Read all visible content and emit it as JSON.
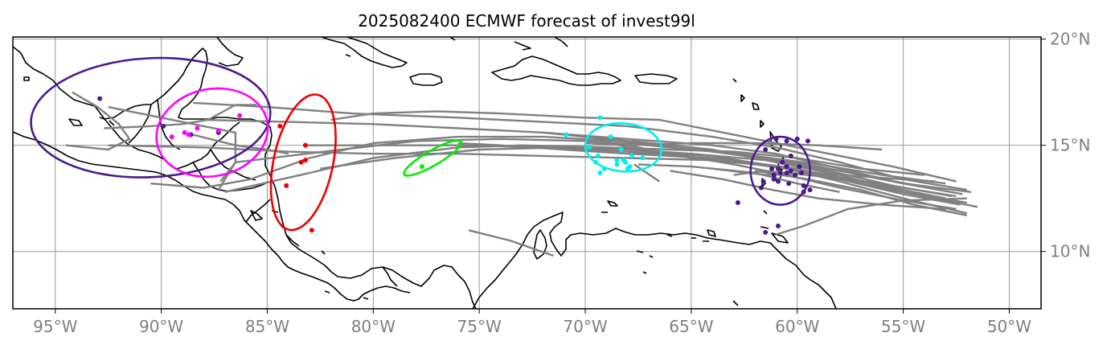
{
  "title": "2025082400 ECMWF forecast of invest99l",
  "chart_data": {
    "type": "map",
    "projection": "PlateCarree",
    "lon_range": [
      -97,
      -48.5
    ],
    "lat_range": [
      7.3,
      20.1
    ],
    "lon_ticks": [
      {
        "value": -95,
        "label": "95°W"
      },
      {
        "value": -90,
        "label": "90°W"
      },
      {
        "value": -85,
        "label": "85°W"
      },
      {
        "value": -80,
        "label": "80°W"
      },
      {
        "value": -75,
        "label": "75°W"
      },
      {
        "value": -70,
        "label": "70°W"
      },
      {
        "value": -65,
        "label": "65°W"
      },
      {
        "value": -60,
        "label": "60°W"
      },
      {
        "value": -55,
        "label": "55°W"
      },
      {
        "value": -50,
        "label": "50°W"
      }
    ],
    "lat_ticks": [
      {
        "value": 10,
        "label": "10°N"
      },
      {
        "value": 15,
        "label": "15°N"
      },
      {
        "value": 20,
        "label": "20°N"
      }
    ],
    "grid": true,
    "track_color": "#808080",
    "ensemble_tracks": [
      [
        [
          -52.5,
          12.6
        ],
        [
          -55,
          13.0
        ],
        [
          -58,
          13.5
        ],
        [
          -61,
          14.0
        ],
        [
          -64,
          14.3
        ],
        [
          -68,
          14.4
        ],
        [
          -72,
          14.5
        ],
        [
          -76,
          14.6
        ],
        [
          -80,
          14.6
        ],
        [
          -84,
          14.7
        ],
        [
          -88,
          14.9
        ],
        [
          -92.5,
          15.0
        ]
      ],
      [
        [
          -52,
          12.3
        ],
        [
          -55,
          12.8
        ],
        [
          -58,
          13.6
        ],
        [
          -61,
          14.2
        ],
        [
          -64,
          14.8
        ],
        [
          -68,
          15.2
        ],
        [
          -72,
          15.6
        ],
        [
          -76,
          15.8
        ],
        [
          -80,
          16.0
        ],
        [
          -84,
          16.1
        ],
        [
          -88,
          16.2
        ]
      ],
      [
        [
          -52.3,
          12.2
        ],
        [
          -55,
          12.7
        ],
        [
          -58,
          13.4
        ],
        [
          -61,
          14.0
        ],
        [
          -64,
          14.5
        ],
        [
          -68,
          14.7
        ],
        [
          -72,
          14.9
        ],
        [
          -76,
          15.0
        ],
        [
          -80,
          15.0
        ],
        [
          -83.3,
          15.0
        ]
      ],
      [
        [
          -52,
          11.8
        ],
        [
          -55,
          12.5
        ],
        [
          -58,
          13.3
        ],
        [
          -61,
          14.0
        ],
        [
          -64,
          14.4
        ],
        [
          -68,
          14.6
        ],
        [
          -71,
          14.8
        ],
        [
          -74,
          15.0
        ],
        [
          -76,
          15.1
        ]
      ],
      [
        [
          -51.5,
          12.1
        ],
        [
          -54,
          12.6
        ],
        [
          -57,
          13.2
        ],
        [
          -60,
          13.9
        ],
        [
          -63,
          14.3
        ],
        [
          -66,
          14.5
        ],
        [
          -68,
          14.7
        ]
      ],
      [
        [
          -53,
          12.5
        ],
        [
          -56,
          13.1
        ],
        [
          -59,
          13.7
        ],
        [
          -62,
          14.1
        ],
        [
          -65,
          14.4
        ],
        [
          -68,
          14.9
        ],
        [
          -69.5,
          15.3
        ]
      ],
      [
        [
          -52.5,
          12.0
        ],
        [
          -55,
          12.4
        ],
        [
          -58,
          13.0
        ],
        [
          -60.5,
          13.6
        ],
        [
          -63,
          14.1
        ],
        [
          -66,
          14.6
        ],
        [
          -68,
          15.0
        ]
      ],
      [
        [
          -52,
          11.7
        ],
        [
          -54.5,
          12.2
        ],
        [
          -57,
          12.9
        ],
        [
          -59.5,
          13.4
        ],
        [
          -62,
          13.8
        ]
      ],
      [
        [
          -51.8,
          12.8
        ],
        [
          -55,
          13.2
        ],
        [
          -58,
          13.9
        ],
        [
          -61,
          14.6
        ],
        [
          -64,
          15.0
        ],
        [
          -68,
          15.3
        ],
        [
          -72,
          15.6
        ]
      ],
      [
        [
          -53,
          13.2
        ],
        [
          -56,
          13.6
        ],
        [
          -59,
          14.1
        ],
        [
          -62,
          14.5
        ],
        [
          -65,
          14.9
        ],
        [
          -67.8,
          15.2
        ]
      ],
      [
        [
          -52.8,
          12.4
        ],
        [
          -55.5,
          12.9
        ],
        [
          -58.5,
          13.5
        ],
        [
          -61.5,
          13.8
        ],
        [
          -63,
          13.6
        ]
      ],
      [
        [
          -54,
          13.6
        ],
        [
          -57,
          13.9
        ],
        [
          -60,
          14.4
        ],
        [
          -63,
          14.7
        ],
        [
          -66,
          14.8
        ],
        [
          -69,
          14.9
        ],
        [
          -73,
          15.0
        ],
        [
          -76,
          14.9
        ],
        [
          -80,
          14.4
        ],
        [
          -83,
          13.7
        ],
        [
          -87,
          12.8
        ]
      ],
      [
        [
          -52,
          12.9
        ],
        [
          -55,
          13.4
        ],
        [
          -58,
          14.2
        ],
        [
          -61,
          14.9
        ],
        [
          -64,
          15.4
        ],
        [
          -68,
          15.9
        ],
        [
          -72,
          16.1
        ],
        [
          -76,
          16.3
        ],
        [
          -81,
          16.5
        ],
        [
          -85,
          16.8
        ],
        [
          -88.5,
          17.0
        ]
      ],
      [
        [
          -52.5,
          13.3
        ],
        [
          -55.5,
          14.0
        ],
        [
          -58.5,
          14.6
        ],
        [
          -61,
          15.1
        ],
        [
          -63.5,
          15.6
        ],
        [
          -66.5,
          16.2
        ],
        [
          -70,
          16.3
        ],
        [
          -74,
          16.5
        ],
        [
          -77,
          16.6
        ],
        [
          -80,
          16.5
        ],
        [
          -82,
          16.2
        ]
      ],
      [
        [
          -56,
          14.8
        ],
        [
          -59,
          15.0
        ],
        [
          -62,
          15.1
        ],
        [
          -65,
          15.1
        ],
        [
          -68,
          15.0
        ],
        [
          -70,
          15.1
        ]
      ],
      [
        [
          -58,
          12.8
        ],
        [
          -60,
          13.2
        ],
        [
          -62,
          13.7
        ],
        [
          -65,
          14.0
        ],
        [
          -67.5,
          14.1
        ]
      ],
      [
        [
          -53,
          12.0
        ],
        [
          -56,
          12.2
        ],
        [
          -59,
          12.5
        ],
        [
          -61.2,
          12.9
        ],
        [
          -63.5,
          13.4
        ],
        [
          -66,
          13.8
        ]
      ],
      [
        [
          -52,
          12.5
        ],
        [
          -55,
          12.4
        ],
        [
          -57.6,
          12.0
        ],
        [
          -59.7,
          11.2
        ],
        [
          -61,
          10.8
        ]
      ],
      [
        [
          -53.5,
          13.3
        ],
        [
          -56.5,
          13.5
        ],
        [
          -59.2,
          13.7
        ],
        [
          -61.5,
          13.6
        ],
        [
          -64,
          13.9
        ]
      ],
      [
        [
          -52.2,
          12.7
        ],
        [
          -55,
          13.2
        ],
        [
          -58,
          13.8
        ],
        [
          -61,
          14.3
        ],
        [
          -64,
          14.7
        ],
        [
          -67,
          15.0
        ],
        [
          -70,
          15.2
        ],
        [
          -74,
          15.3
        ],
        [
          -78,
          15.2
        ],
        [
          -81.5,
          14.8
        ],
        [
          -84,
          14.5
        ],
        [
          -86.5,
          14.2
        ],
        [
          -87.3,
          12.9
        ]
      ],
      [
        [
          -52.7,
          12.6
        ],
        [
          -55.5,
          13.1
        ],
        [
          -58.5,
          13.8
        ],
        [
          -61.5,
          14.3
        ],
        [
          -65,
          14.6
        ],
        [
          -68,
          14.8
        ],
        [
          -71,
          14.9
        ],
        [
          -75,
          14.8
        ],
        [
          -79,
          14.4
        ],
        [
          -82.5,
          13.9
        ]
      ],
      [
        [
          -53.2,
          12.9
        ],
        [
          -56,
          13.4
        ],
        [
          -59,
          14.0
        ],
        [
          -62,
          14.5
        ],
        [
          -65,
          14.9
        ],
        [
          -68.5,
          15.2
        ],
        [
          -72,
          15.4
        ],
        [
          -76,
          15.4
        ],
        [
          -80,
          15.1
        ],
        [
          -83,
          14.4
        ],
        [
          -85.8,
          13.4
        ],
        [
          -88,
          13.0
        ],
        [
          -90.5,
          13.2
        ]
      ],
      [
        [
          -75.5,
          11.0
        ],
        [
          -73.5,
          10.5
        ],
        [
          -71.5,
          9.8
        ]
      ],
      [
        [
          -66.5,
          13.3
        ],
        [
          -67.7,
          14.1
        ]
      ],
      [
        [
          -94.2,
          17.5
        ],
        [
          -93,
          16.8
        ],
        [
          -92,
          16.0
        ],
        [
          -91.5,
          15.3
        ],
        [
          -92.5,
          14.8
        ],
        [
          -94.5,
          15.0
        ]
      ],
      [
        [
          -92.5,
          16.8
        ],
        [
          -90,
          16.3
        ],
        [
          -88,
          15.9
        ],
        [
          -86.5,
          15.6
        ],
        [
          -86.5,
          14.2
        ],
        [
          -87.2,
          13.3
        ]
      ],
      [
        [
          -88.5,
          15.5
        ],
        [
          -86.5,
          15.0
        ],
        [
          -85,
          14.8
        ],
        [
          -84,
          14.6
        ]
      ],
      [
        [
          -92.7,
          15.8
        ],
        [
          -90.5,
          15.9
        ],
        [
          -89,
          16.0
        ],
        [
          -87.8,
          16.2
        ],
        [
          -86.5,
          16.9
        ],
        [
          -85.5,
          16.9
        ]
      ]
    ],
    "groups": [
      {
        "color": "#4b1a8f",
        "ellipse": {
          "cx": -90.5,
          "cy": 16.3,
          "rx": 5.65,
          "ry": 2.8,
          "angle": 3
        },
        "points": [
          [
            -92.9,
            17.2
          ],
          [
            -89.9,
            15.9
          ],
          [
            -87.3,
            15.6
          ],
          [
            -88.6,
            15.5
          ]
        ]
      },
      {
        "color": "#ff00ff",
        "ellipse": {
          "cx": -87.6,
          "cy": 15.6,
          "rx": 2.65,
          "ry": 2.05,
          "angle": 12
        },
        "points": [
          [
            -89.5,
            15.4
          ],
          [
            -88.9,
            15.6
          ],
          [
            -88.3,
            15.8
          ],
          [
            -88.7,
            15.5
          ],
          [
            -87.3,
            15.7
          ],
          [
            -86.3,
            16.4
          ]
        ]
      },
      {
        "color": "#ee0000",
        "ellipse": {
          "cx": -83.3,
          "cy": 14.2,
          "rx": 1.4,
          "ry": 3.25,
          "angle": -12
        },
        "points": [
          [
            -84.4,
            15.9
          ],
          [
            -83.2,
            15.0
          ],
          [
            -83.2,
            14.3
          ],
          [
            -83.4,
            14.2
          ],
          [
            -84.1,
            13.1
          ],
          [
            -82.9,
            11.0
          ]
        ]
      },
      {
        "color": "#00ee00",
        "ellipse": {
          "cx": -77.2,
          "cy": 14.4,
          "rx": 1.55,
          "ry": 0.35,
          "angle": 30
        },
        "points": [
          [
            -77.7,
            14.0
          ]
        ]
      },
      {
        "color": "#00eeee",
        "ellipse": {
          "cx": -68.2,
          "cy": 14.9,
          "rx": 1.8,
          "ry": 1.13,
          "angle": -5
        },
        "points": [
          [
            -69.3,
            16.3
          ],
          [
            -70.9,
            15.5
          ],
          [
            -69.8,
            14.9
          ],
          [
            -68.8,
            15.4
          ],
          [
            -68.3,
            14.8
          ],
          [
            -67.8,
            14.5
          ],
          [
            -68.2,
            14.3
          ],
          [
            -67.3,
            14.4
          ],
          [
            -69.4,
            14.5
          ],
          [
            -69.5,
            14.2
          ],
          [
            -68.5,
            14.1
          ],
          [
            -68.1,
            14.2
          ],
          [
            -69.1,
            13.9
          ],
          [
            -69.3,
            13.7
          ],
          [
            -68.0,
            13.9
          ],
          [
            -67.9,
            14.0
          ],
          [
            -68.5,
            14.3
          ]
        ]
      },
      {
        "color": "#4b1a8f",
        "ellipse": {
          "cx": -60.8,
          "cy": 13.8,
          "rx": 1.4,
          "ry": 1.6,
          "angle": 0
        },
        "points": [
          [
            -61.0,
            15.3
          ],
          [
            -60.5,
            15.2
          ],
          [
            -60.0,
            15.3
          ],
          [
            -59.5,
            15.2
          ],
          [
            -61.5,
            14.8
          ],
          [
            -60.3,
            14.5
          ],
          [
            -60.7,
            14.2
          ],
          [
            -61.2,
            13.9
          ],
          [
            -60.9,
            13.9
          ],
          [
            -60.5,
            14.0
          ],
          [
            -60.3,
            13.8
          ],
          [
            -59.9,
            14.0
          ],
          [
            -61.1,
            13.6
          ],
          [
            -60.8,
            13.7
          ],
          [
            -60.5,
            13.7
          ],
          [
            -60.1,
            13.6
          ],
          [
            -59.8,
            13.7
          ],
          [
            -61.6,
            13.3
          ],
          [
            -61.1,
            13.4
          ],
          [
            -60.9,
            13.3
          ],
          [
            -60.4,
            13.2
          ],
          [
            -59.7,
            13.1
          ],
          [
            -59.4,
            12.9
          ],
          [
            -59.7,
            12.8
          ],
          [
            -61.7,
            13.0
          ],
          [
            -62.8,
            12.3
          ],
          [
            -60.9,
            11.2
          ],
          [
            -61.5,
            10.9
          ]
        ]
      }
    ]
  }
}
